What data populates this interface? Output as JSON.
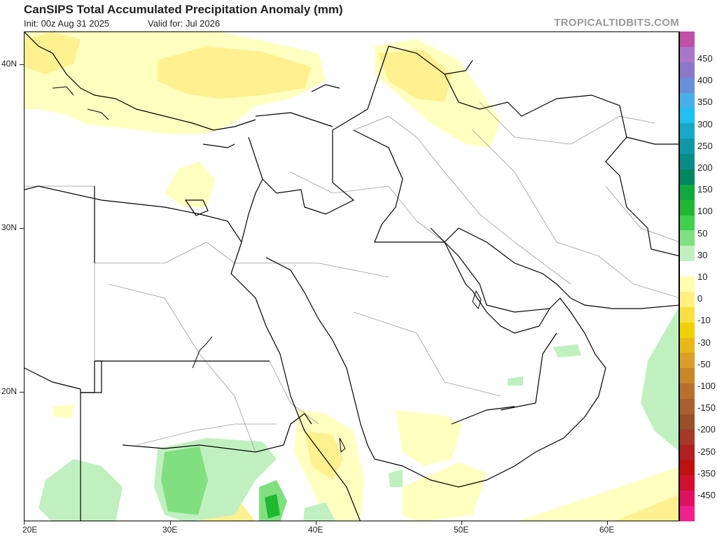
{
  "header": {
    "title": "CanSIPS Total Accumulated Precipitation Anomaly (mm)",
    "init": "Init: 00z Aug 31 2025",
    "valid": "Valid for: Jul 2026",
    "watermark": "TROPICALTIDBITS.COM"
  },
  "axes": {
    "lat_labels": [
      "40N",
      "30N",
      "20N"
    ],
    "lon_labels": [
      "20E",
      "30E",
      "40E",
      "50E",
      "60E"
    ]
  },
  "colorbar": {
    "labels": [
      "450",
      "400",
      "350",
      "300",
      "250",
      "200",
      "150",
      "100",
      "50",
      "30",
      "10",
      "0",
      "-10",
      "-30",
      "-50",
      "-100",
      "-150",
      "-200",
      "-250",
      "-350",
      "-450"
    ],
    "colors": [
      "#c050a8",
      "#a878c8",
      "#8c78c8",
      "#6890d8",
      "#48b0e8",
      "#20c0f0",
      "#18a8c8",
      "#1098a8",
      "#088c88",
      "#008860",
      "#10a840",
      "#20b830",
      "#40d050",
      "#80e080",
      "#c0f0c0",
      "#ffffff",
      "#ffffb0",
      "#fff080",
      "#f8e040",
      "#f0d000",
      "#e8b818",
      "#d8a028",
      "#c88828",
      "#b87030",
      "#a86030",
      "#985028",
      "#a83828",
      "#b02020",
      "#c01010",
      "#d01030",
      "#e01060",
      "#f0208c"
    ]
  }
}
